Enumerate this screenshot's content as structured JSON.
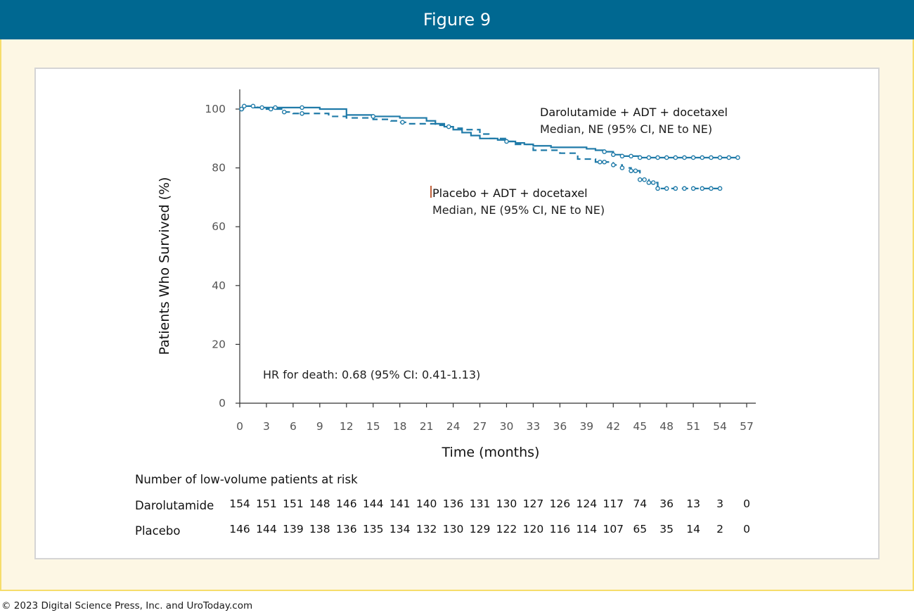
{
  "header": {
    "title": "Figure 9"
  },
  "footer": {
    "copyright": "© 2023 Digital Science Press, Inc. and UroToday.com"
  },
  "colors": {
    "header_bg": "#006891",
    "frame_bg": "#fdf7e4",
    "frame_border": "#f6dd6b",
    "series": "#1f7aa8",
    "placebo_marker": "#c0603a"
  },
  "chart_data": {
    "type": "line",
    "title": "",
    "xlabel": "Time (months)",
    "ylabel": "Patients Who Survived (%)",
    "xlim": [
      0,
      57
    ],
    "ylim": [
      0,
      100
    ],
    "x_ticks": [
      0,
      3,
      6,
      9,
      12,
      15,
      18,
      21,
      24,
      27,
      30,
      33,
      36,
      39,
      42,
      45,
      48,
      51,
      54,
      57
    ],
    "y_ticks": [
      0,
      20,
      40,
      60,
      80,
      100
    ],
    "grid": false,
    "step": true,
    "series": [
      {
        "name": "Darolutamide + ADT + docetaxel",
        "median_label": "Median, NE (95% CI, NE to NE)",
        "line_style": "solid",
        "x": [
          0,
          0.4,
          1.5,
          3,
          4.5,
          6,
          9,
          12,
          15,
          18,
          20,
          21,
          22,
          23,
          24,
          25,
          26,
          27,
          29,
          30,
          31,
          32,
          33,
          35,
          37,
          39,
          40,
          41,
          42,
          43,
          45,
          48,
          51,
          54,
          56
        ],
        "y": [
          100,
          101,
          100.5,
          100.5,
          100.5,
          100.5,
          100,
          98,
          97.5,
          97,
          97,
          96,
          95,
          94,
          93,
          92,
          91,
          90,
          89.5,
          89,
          88.5,
          88,
          87.5,
          87,
          87,
          86.5,
          86,
          85.5,
          84.5,
          84,
          83.5,
          83.5,
          83.5,
          83.5,
          83.5
        ],
        "censor_x": [
          0.2,
          0.5,
          4,
          7,
          15,
          41,
          42,
          43,
          44,
          45,
          46,
          47,
          48,
          49,
          50,
          51,
          52,
          53,
          54,
          55,
          56
        ]
      },
      {
        "name": "Placebo + ADT + docetaxel",
        "median_label": "Median, NE (95% CI, NE to NE)",
        "line_style": "dashed",
        "x": [
          0,
          0.4,
          2,
          3,
          4.5,
          5,
          6,
          9,
          10,
          12,
          15,
          17,
          18,
          19,
          21,
          22,
          23,
          24,
          25,
          27,
          28,
          30,
          31,
          33,
          36,
          38,
          40,
          41,
          42,
          43,
          44,
          45,
          46,
          47,
          48,
          51,
          54
        ],
        "y": [
          100,
          101,
          100.5,
          100,
          100,
          99,
          98.5,
          98.5,
          97.5,
          97,
          96.5,
          96,
          95.5,
          95,
          95,
          94.5,
          94,
          93.5,
          93,
          91.5,
          90,
          89,
          88,
          86,
          85,
          83,
          82,
          82,
          81,
          80,
          79,
          76,
          75,
          73,
          73,
          73,
          73
        ],
        "censor_x": [
          0.2,
          1.5,
          2.5,
          3.5,
          5,
          7,
          18.3,
          23.5,
          30,
          40.5,
          41,
          42,
          43,
          44,
          44.5,
          45,
          45.5,
          46,
          46.5,
          47,
          48,
          49,
          50,
          51,
          52,
          53,
          54
        ]
      }
    ],
    "annotations": [
      "HR for death: 0.68 (95% CI: 0.41-1.13)"
    ],
    "risk_table": {
      "heading": "Number of low-volume patients at risk",
      "rows": [
        {
          "label": "Darolutamide",
          "values": [
            154,
            151,
            151,
            148,
            146,
            144,
            141,
            140,
            136,
            131,
            130,
            127,
            126,
            124,
            117,
            74,
            36,
            13,
            3,
            0
          ]
        },
        {
          "label": "Placebo",
          "values": [
            146,
            144,
            139,
            138,
            136,
            135,
            134,
            132,
            130,
            129,
            122,
            120,
            116,
            114,
            107,
            65,
            35,
            14,
            2,
            0
          ]
        }
      ]
    }
  }
}
